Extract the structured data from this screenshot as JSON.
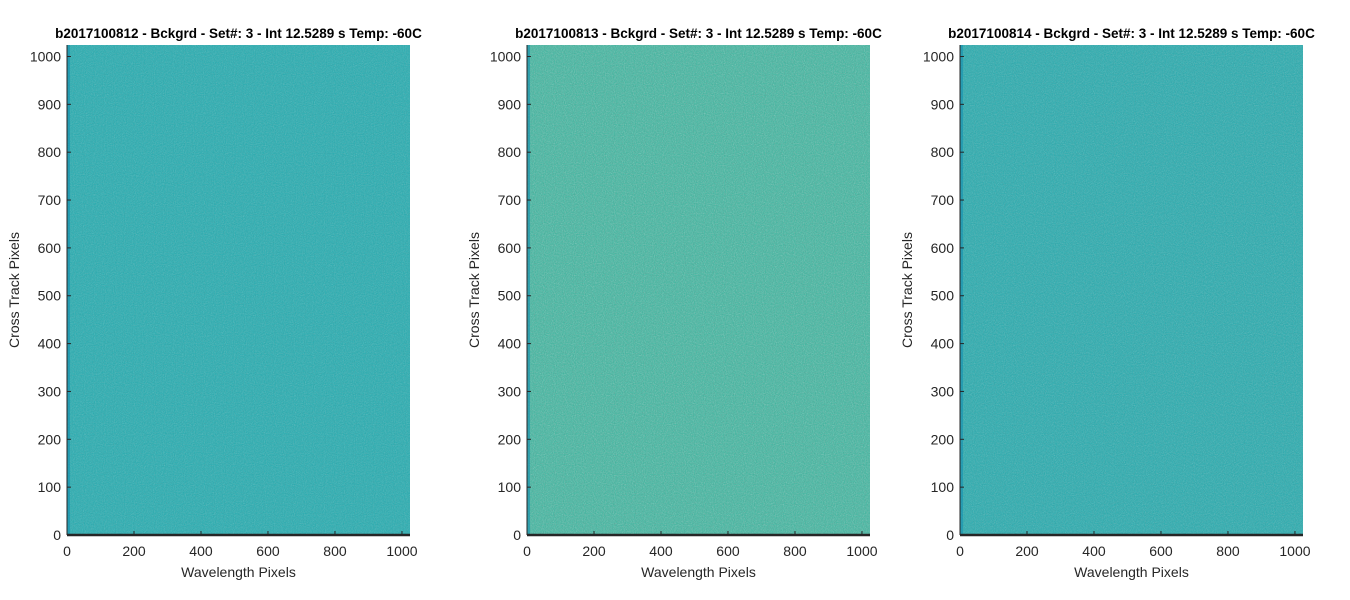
{
  "chart_data": [
    {
      "type": "heatmap",
      "title": "b2017100812 - Bckgrd - Set#: 3 - Int 12.5289 s Temp: -60C",
      "xlabel": "Wavelength Pixels",
      "ylabel": "Cross Track Pixels",
      "xlim": [
        0,
        1024
      ],
      "ylim": [
        0,
        1024
      ],
      "xticks": [
        0,
        200,
        400,
        600,
        800,
        1000
      ],
      "yticks": [
        0,
        100,
        200,
        300,
        400,
        500,
        600,
        700,
        800,
        900,
        1000
      ],
      "base_color": "#1aa6b9",
      "noise_color": "#2fb6a8",
      "noise_level": 0.35,
      "grid": false
    },
    {
      "type": "heatmap",
      "title": "b2017100813 - Bckgrd - Set#: 3 - Int 12.5289 s Temp: -60C",
      "xlabel": "Wavelength Pixels",
      "ylabel": "Cross Track Pixels",
      "xlim": [
        0,
        1024
      ],
      "ylim": [
        0,
        1024
      ],
      "xticks": [
        0,
        200,
        400,
        600,
        800,
        1000
      ],
      "yticks": [
        0,
        100,
        200,
        300,
        400,
        500,
        600,
        700,
        800,
        900,
        1000
      ],
      "base_color": "#2bb3aa",
      "noise_color": "#4bbf94",
      "noise_level": 0.5,
      "grid": false
    },
    {
      "type": "heatmap",
      "title": "b2017100814 - Bckgrd - Set#: 3 - Int 12.5289 s Temp: -60C",
      "xlabel": "Wavelength Pixels",
      "ylabel": "Cross Track Pixels",
      "xlim": [
        0,
        1024
      ],
      "ylim": [
        0,
        1024
      ],
      "xticks": [
        0,
        200,
        400,
        600,
        800,
        1000
      ],
      "yticks": [
        0,
        100,
        200,
        300,
        400,
        500,
        600,
        700,
        800,
        900,
        1000
      ],
      "base_color": "#1ba7b6",
      "noise_color": "#31b4a6",
      "noise_level": 0.38,
      "grid": false
    }
  ]
}
